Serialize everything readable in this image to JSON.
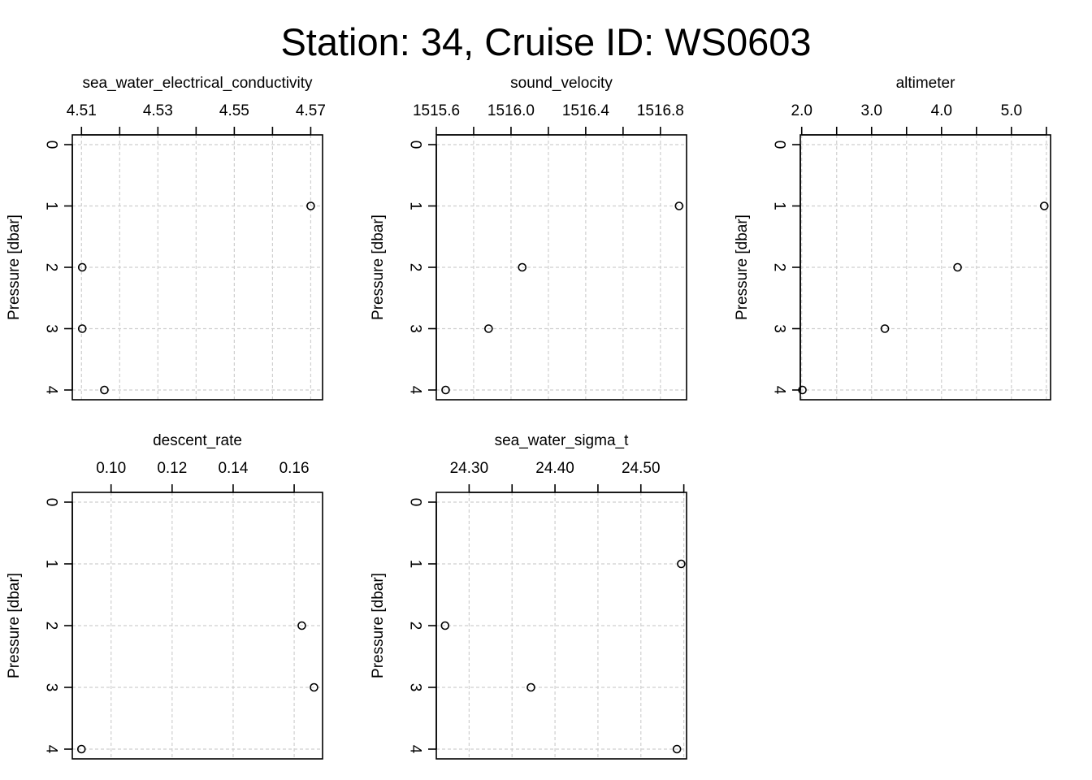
{
  "title": "Station: 34, Cruise ID: WS0603",
  "chart_data": [
    {
      "type": "scatter",
      "title": "sea_water_electrical_conductivity",
      "ylabel": "Pressure [dbar]",
      "ylim": [
        0,
        4
      ],
      "y_reversed": true,
      "xlim": [
        4.5076,
        4.5731
      ],
      "x_ticks": [
        4.51,
        4.52,
        4.53,
        4.54,
        4.55,
        4.56,
        4.57
      ],
      "x_tick_labels": [
        "4.51",
        "",
        "4.53",
        "",
        "4.55",
        "",
        "4.57"
      ],
      "y_ticks": [
        0,
        1,
        2,
        3,
        4
      ],
      "y_tick_labels": [
        "0",
        "1",
        "2",
        "3",
        "4"
      ],
      "grid": true,
      "points": [
        {
          "x": 4.57,
          "y": 1
        },
        {
          "x": 4.5102,
          "y": 2
        },
        {
          "x": 4.5102,
          "y": 3
        },
        {
          "x": 4.516,
          "y": 4
        }
      ]
    },
    {
      "type": "scatter",
      "title": "sound_velocity",
      "ylabel": "Pressure [dbar]",
      "ylim": [
        0,
        4
      ],
      "y_reversed": true,
      "xlim": [
        1515.6,
        1516.94
      ],
      "x_ticks": [
        1515.6,
        1515.8,
        1516.0,
        1516.2,
        1516.4,
        1516.6,
        1516.8
      ],
      "x_tick_labels": [
        "1515.6",
        "",
        "1516.0",
        "",
        "1516.4",
        "",
        "1516.8"
      ],
      "y_ticks": [
        0,
        1,
        2,
        3,
        4
      ],
      "y_tick_labels": [
        "0",
        "1",
        "2",
        "3",
        "4"
      ],
      "grid": true,
      "points": [
        {
          "x": 1516.9,
          "y": 1
        },
        {
          "x": 1516.06,
          "y": 2
        },
        {
          "x": 1515.88,
          "y": 3
        },
        {
          "x": 1515.65,
          "y": 4
        }
      ]
    },
    {
      "type": "scatter",
      "title": "altimeter",
      "ylabel": "Pressure [dbar]",
      "ylim": [
        0,
        4
      ],
      "y_reversed": true,
      "xlim": [
        1.98,
        5.56
      ],
      "x_ticks": [
        2.0,
        2.5,
        3.0,
        3.5,
        4.0,
        4.5,
        5.0,
        5.5
      ],
      "x_tick_labels": [
        "2.0",
        "",
        "3.0",
        "",
        "4.0",
        "",
        "5.0",
        ""
      ],
      "y_ticks": [
        0,
        1,
        2,
        3,
        4
      ],
      "y_tick_labels": [
        "0",
        "1",
        "2",
        "3",
        "4"
      ],
      "grid": true,
      "points": [
        {
          "x": 5.47,
          "y": 1
        },
        {
          "x": 4.23,
          "y": 2
        },
        {
          "x": 3.19,
          "y": 3
        },
        {
          "x": 2.01,
          "y": 4
        }
      ]
    },
    {
      "type": "scatter",
      "title": "descent_rate",
      "ylabel": "Pressure [dbar]",
      "ylim": [
        0,
        4
      ],
      "y_reversed": true,
      "xlim": [
        0.0873,
        0.1693
      ],
      "x_ticks": [
        0.1,
        0.12,
        0.14,
        0.16
      ],
      "x_tick_labels": [
        "0.10",
        "0.12",
        "0.14",
        "0.16"
      ],
      "y_ticks": [
        0,
        1,
        2,
        3,
        4
      ],
      "y_tick_labels": [
        "0",
        "1",
        "2",
        "3",
        "4"
      ],
      "grid": true,
      "points": [
        {
          "x": 0.1625,
          "y": 2
        },
        {
          "x": 0.1665,
          "y": 3
        },
        {
          "x": 0.0903,
          "y": 4
        }
      ]
    },
    {
      "type": "scatter",
      "title": "sea_water_sigma_t",
      "ylabel": "Pressure [dbar]",
      "ylim": [
        0,
        4
      ],
      "y_reversed": true,
      "xlim": [
        24.2618,
        24.5532
      ],
      "x_ticks": [
        24.3,
        24.35,
        24.4,
        24.45,
        24.5,
        24.55
      ],
      "x_tick_labels": [
        "24.30",
        "",
        "24.40",
        "",
        "24.50",
        ""
      ],
      "y_ticks": [
        0,
        1,
        2,
        3,
        4
      ],
      "y_tick_labels": [
        "0",
        "1",
        "2",
        "3",
        "4"
      ],
      "grid": true,
      "points": [
        {
          "x": 24.547,
          "y": 1
        },
        {
          "x": 24.272,
          "y": 2
        },
        {
          "x": 24.372,
          "y": 3
        },
        {
          "x": 24.542,
          "y": 4
        }
      ]
    }
  ]
}
